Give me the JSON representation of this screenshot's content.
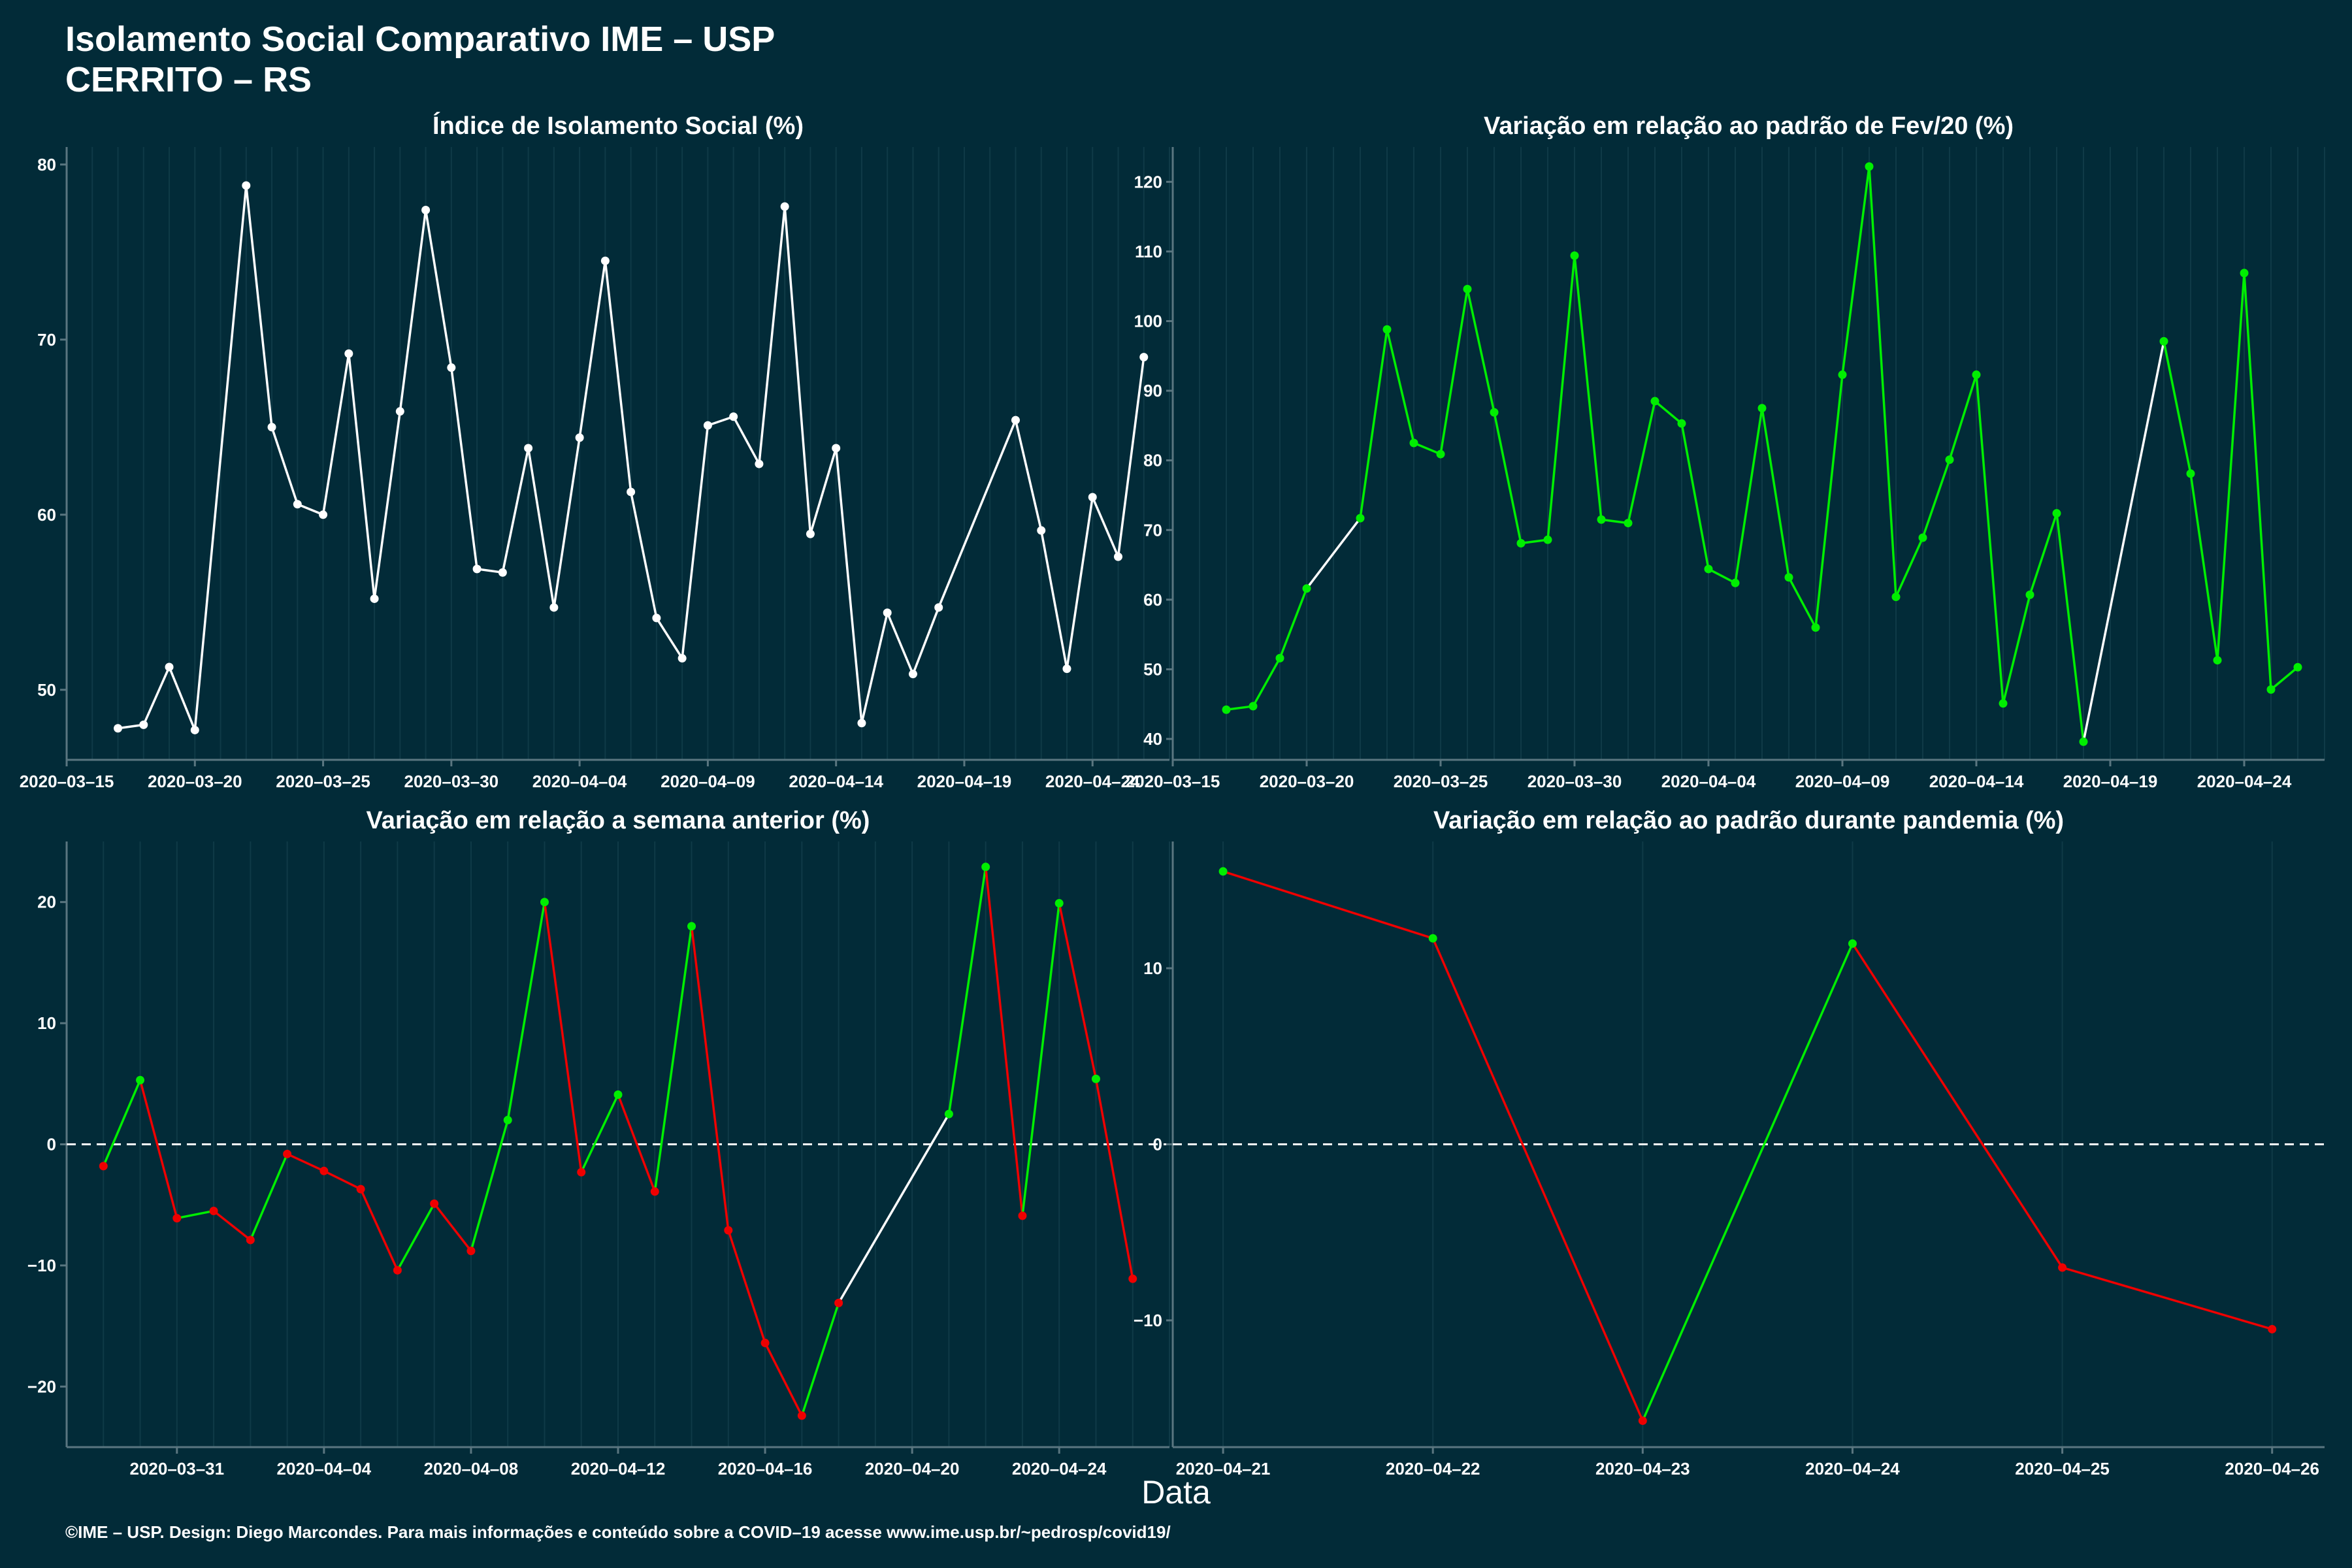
{
  "title": "Isolamento Social Comparativo IME – USP",
  "subtitle": "CERRITO – RS",
  "xlabel": "Data",
  "footer": "©IME – USP. Design: Diego Marcondes. Para mais informações e conteúdo sobre a COVID–19 acesse www.ime.usp.br/~pedrosp/covid19/",
  "colors": {
    "background": "#022b38",
    "line_default": "#ffffff",
    "positive": "#00ee00",
    "negative": "#ee0000",
    "axis": "#5a7680"
  },
  "chart_data": [
    {
      "type": "line",
      "title": "Índice de Isolamento Social (%)",
      "xlim": [
        "2020-03-15",
        "2020-04-27"
      ],
      "ylim": [
        46,
        81
      ],
      "yticks": [
        50,
        60,
        70,
        80
      ],
      "xticks": [
        "2020-03-15",
        "2020-03-20",
        "2020-03-25",
        "2020-03-30",
        "2020-04-04",
        "2020-04-09",
        "2020-04-14",
        "2020-04-19",
        "2020-04-24"
      ],
      "color_mode": "white",
      "points": [
        [
          "2020-03-17",
          47.8
        ],
        [
          "2020-03-18",
          48.0
        ],
        [
          "2020-03-19",
          51.3
        ],
        [
          "2020-03-20",
          47.7
        ],
        [
          "2020-03-22",
          78.8
        ],
        [
          "2020-03-23",
          65.0
        ],
        [
          "2020-03-24",
          60.6
        ],
        [
          "2020-03-25",
          60.0
        ],
        [
          "2020-03-26",
          69.2
        ],
        [
          "2020-03-27",
          55.2
        ],
        [
          "2020-03-28",
          65.9
        ],
        [
          "2020-03-29",
          77.4
        ],
        [
          "2020-03-30",
          68.4
        ],
        [
          "2020-03-31",
          56.9
        ],
        [
          "2020-04-01",
          56.7
        ],
        [
          "2020-04-02",
          63.8
        ],
        [
          "2020-04-03",
          54.7
        ],
        [
          "2020-04-04",
          64.4
        ],
        [
          "2020-04-05",
          74.5
        ],
        [
          "2020-04-06",
          61.3
        ],
        [
          "2020-04-07",
          54.1
        ],
        [
          "2020-04-08",
          51.8
        ],
        [
          "2020-04-09",
          65.1
        ],
        [
          "2020-04-10",
          65.6
        ],
        [
          "2020-04-11",
          62.9
        ],
        [
          "2020-04-12",
          77.6
        ],
        [
          "2020-04-13",
          58.9
        ],
        [
          "2020-04-14",
          63.8
        ],
        [
          "2020-04-15",
          48.1
        ],
        [
          "2020-04-16",
          54.4
        ],
        [
          "2020-04-17",
          50.9
        ],
        [
          "2020-04-18",
          54.7
        ],
        [
          "2020-04-21",
          65.4
        ],
        [
          "2020-04-22",
          59.1
        ],
        [
          "2020-04-23",
          51.2
        ],
        [
          "2020-04-24",
          61.0
        ],
        [
          "2020-04-25",
          57.6
        ],
        [
          "2020-04-26",
          69.0
        ]
      ]
    },
    {
      "type": "line",
      "title": "Variação em relação ao padrão de Fev/20 (%)",
      "xlim": [
        "2020-03-15",
        "2020-04-27"
      ],
      "ylim": [
        37,
        125
      ],
      "yticks": [
        40,
        50,
        60,
        70,
        80,
        90,
        100,
        110,
        120
      ],
      "xticks": [
        "2020-03-15",
        "2020-03-20",
        "2020-03-25",
        "2020-03-30",
        "2020-04-04",
        "2020-04-09",
        "2020-04-14",
        "2020-04-19",
        "2020-04-24"
      ],
      "color_mode": "consecutive",
      "points": [
        [
          "2020-03-17",
          44.2
        ],
        [
          "2020-03-18",
          44.7
        ],
        [
          "2020-03-19",
          51.6
        ],
        [
          "2020-03-20",
          61.6
        ],
        [
          "2020-03-22",
          71.7
        ],
        [
          "2020-03-23",
          98.8
        ],
        [
          "2020-03-24",
          82.5
        ],
        [
          "2020-03-25",
          80.9
        ],
        [
          "2020-03-26",
          104.6
        ],
        [
          "2020-03-27",
          86.9
        ],
        [
          "2020-03-28",
          68.1
        ],
        [
          "2020-03-29",
          68.6
        ],
        [
          "2020-03-30",
          109.4
        ],
        [
          "2020-03-31",
          71.5
        ],
        [
          "2020-04-01",
          71.0
        ],
        [
          "2020-04-02",
          88.5
        ],
        [
          "2020-04-03",
          85.3
        ],
        [
          "2020-04-04",
          64.4
        ],
        [
          "2020-04-05",
          62.4
        ],
        [
          "2020-04-06",
          87.5
        ],
        [
          "2020-04-07",
          63.2
        ],
        [
          "2020-04-08",
          56.0
        ],
        [
          "2020-04-09",
          92.3
        ],
        [
          "2020-04-10",
          122.2
        ],
        [
          "2020-04-11",
          60.4
        ],
        [
          "2020-04-12",
          68.9
        ],
        [
          "2020-04-13",
          80.1
        ],
        [
          "2020-04-14",
          92.3
        ],
        [
          "2020-04-15",
          45.1
        ],
        [
          "2020-04-16",
          60.7
        ],
        [
          "2020-04-17",
          72.4
        ],
        [
          "2020-04-18",
          39.6
        ],
        [
          "2020-04-21",
          97.1
        ],
        [
          "2020-04-22",
          78.1
        ],
        [
          "2020-04-23",
          51.3
        ],
        [
          "2020-04-24",
          106.9
        ],
        [
          "2020-04-25",
          47.1
        ],
        [
          "2020-04-26",
          50.3
        ]
      ]
    },
    {
      "type": "line",
      "title": "Variação em relação a semana anterior (%)",
      "xlim": [
        "2020-03-28",
        "2020-04-27"
      ],
      "ylim": [
        -25,
        25
      ],
      "yticks": [
        -20,
        -10,
        0,
        10,
        20
      ],
      "xticks": [
        "2020-03-31",
        "2020-04-04",
        "2020-04-08",
        "2020-04-12",
        "2020-04-16",
        "2020-04-20",
        "2020-04-24"
      ],
      "color_mode": "sign",
      "zero_line": true,
      "points": [
        [
          "2020-03-29",
          -1.8
        ],
        [
          "2020-03-30",
          5.3
        ],
        [
          "2020-03-31",
          -6.1
        ],
        [
          "2020-04-01",
          -5.5
        ],
        [
          "2020-04-02",
          -7.9
        ],
        [
          "2020-04-03",
          -0.8
        ],
        [
          "2020-04-04",
          -2.2
        ],
        [
          "2020-04-05",
          -3.7
        ],
        [
          "2020-04-06",
          -10.4
        ],
        [
          "2020-04-07",
          -4.9
        ],
        [
          "2020-04-08",
          -8.8
        ],
        [
          "2020-04-09",
          2.0
        ],
        [
          "2020-04-10",
          20.0
        ],
        [
          "2020-04-11",
          -2.3
        ],
        [
          "2020-04-12",
          4.1
        ],
        [
          "2020-04-13",
          -3.9
        ],
        [
          "2020-04-14",
          18.0
        ],
        [
          "2020-04-15",
          -7.1
        ],
        [
          "2020-04-16",
          -16.4
        ],
        [
          "2020-04-17",
          -22.4
        ],
        [
          "2020-04-18",
          -13.1
        ],
        [
          "2020-04-21",
          2.5
        ],
        [
          "2020-04-22",
          22.9
        ],
        [
          "2020-04-23",
          -5.9
        ],
        [
          "2020-04-24",
          19.9
        ],
        [
          "2020-04-25",
          5.4
        ],
        [
          "2020-04-26",
          -11.1
        ]
      ]
    },
    {
      "type": "line",
      "title": "Variação em relação ao padrão durante pandemia (%)",
      "xlim": [
        "2020-04-20.76",
        "2020-04-26.25"
      ],
      "ylim": [
        -17.2,
        17.2
      ],
      "yticks": [
        -10,
        0,
        10
      ],
      "xticks": [
        "2020-04-21",
        "2020-04-22",
        "2020-04-23",
        "2020-04-24",
        "2020-04-25",
        "2020-04-26"
      ],
      "color_mode": "sign",
      "zero_line": true,
      "points": [
        [
          "2020-04-21",
          15.5
        ],
        [
          "2020-04-22",
          11.7
        ],
        [
          "2020-04-23",
          -15.7
        ],
        [
          "2020-04-24",
          11.4
        ],
        [
          "2020-04-25",
          -7.0
        ],
        [
          "2020-04-26",
          -10.5
        ]
      ]
    }
  ]
}
